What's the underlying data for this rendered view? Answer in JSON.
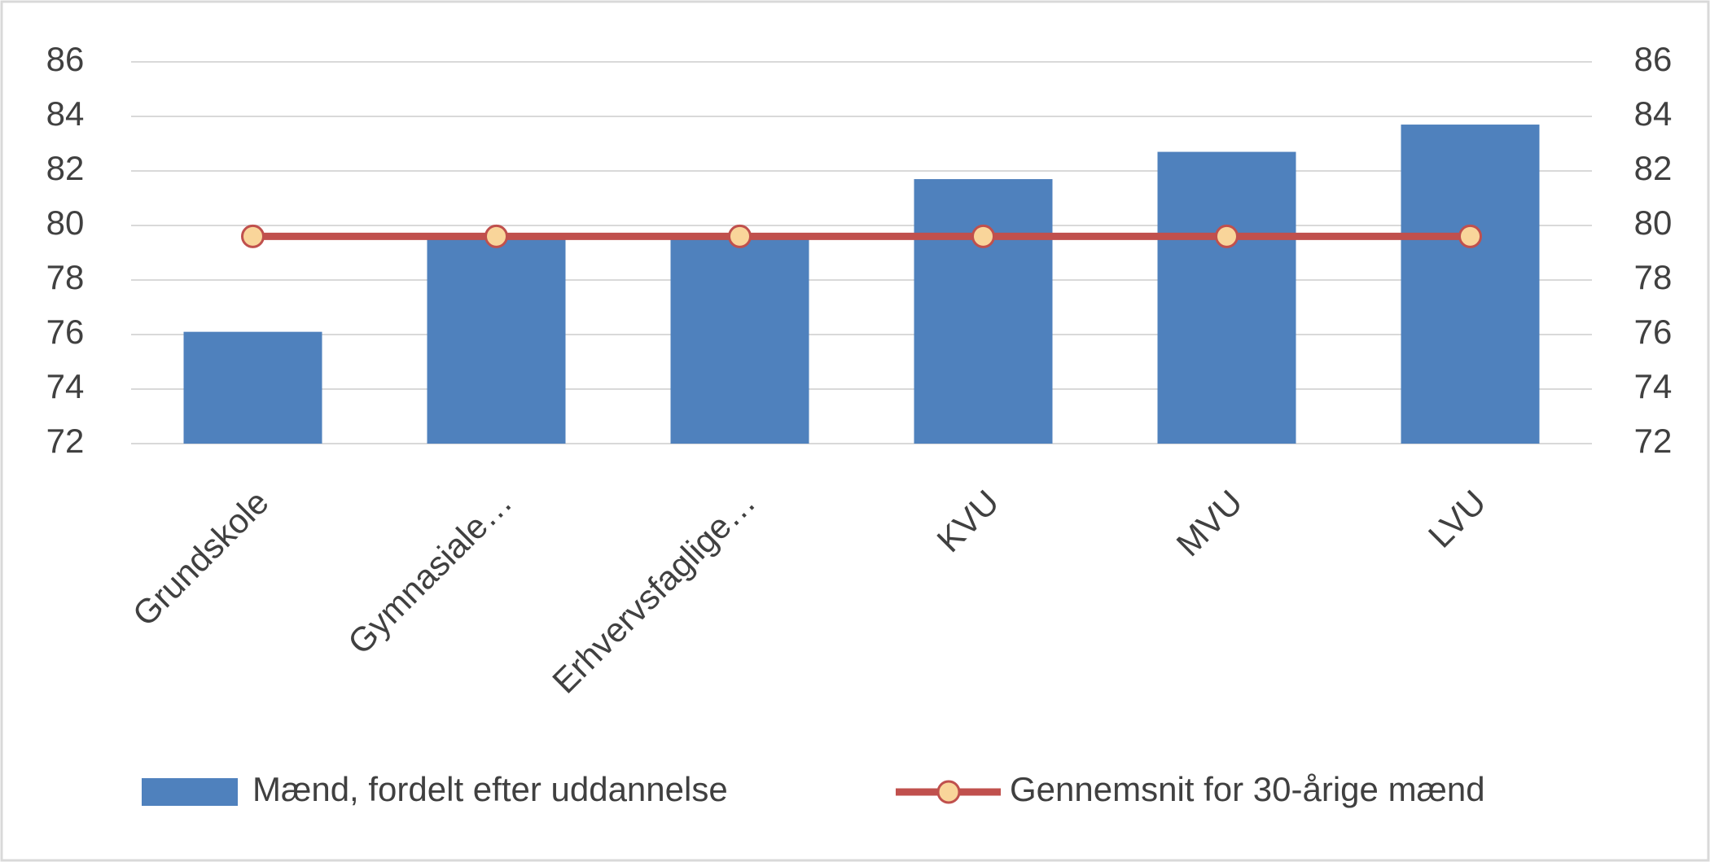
{
  "chart_data": {
    "type": "bar",
    "categories": [
      "Grundskole",
      "Gymnasiale…",
      "Erhvervsfaglige…",
      "KVU",
      "MVU",
      "LVU"
    ],
    "series": [
      {
        "name": "Mænd, fordelt efter uddannelse",
        "type": "bar",
        "color": "#4f81bd",
        "values": [
          76.1,
          79.7,
          79.7,
          81.7,
          82.7,
          83.7
        ]
      },
      {
        "name": "Gennemsnit for 30-årige mænd",
        "type": "line",
        "axis": "y2",
        "color": "#c0504d",
        "marker_color": "#f9d59a",
        "values": [
          79.6,
          79.6,
          79.6,
          79.6,
          79.6,
          79.6
        ]
      }
    ],
    "ylim": [
      72,
      86
    ],
    "yticks": [
      72,
      74,
      76,
      78,
      80,
      82,
      84,
      86
    ],
    "y2lim": [
      72,
      86
    ],
    "y2ticks": [
      72,
      74,
      76,
      78,
      80,
      82,
      84,
      86
    ],
    "grid": true,
    "legend": "bottom"
  }
}
